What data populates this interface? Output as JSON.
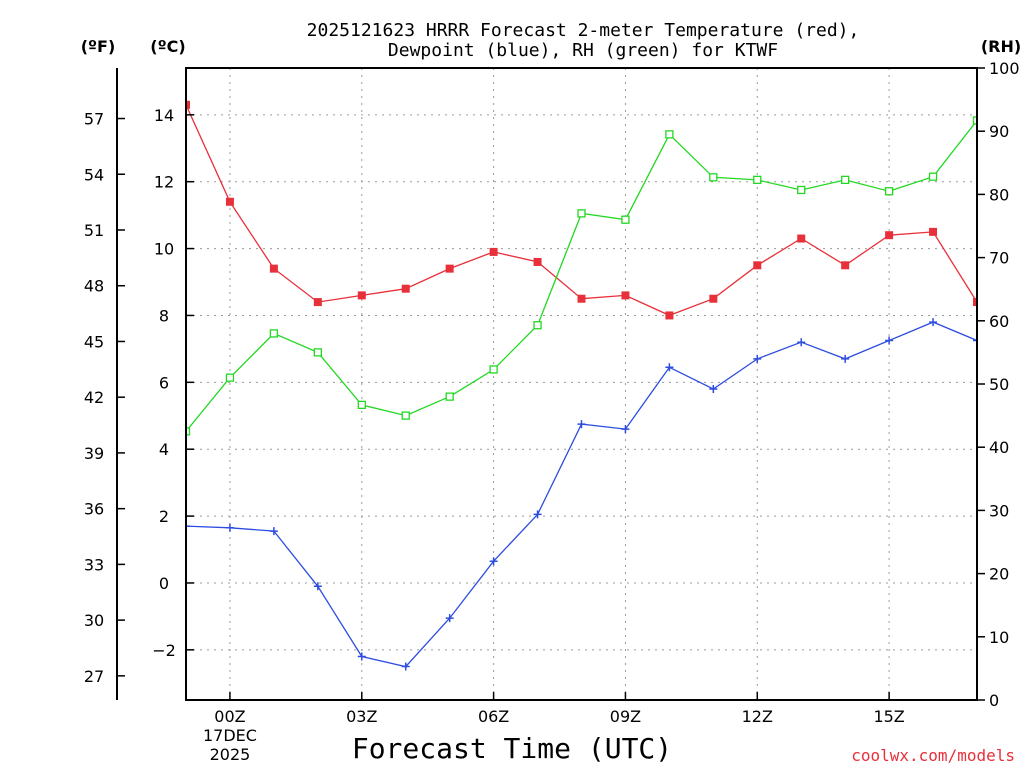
{
  "colors": {
    "temperature": "#e8303a",
    "dewpoint": "#2d4de0",
    "rh": "#22d822",
    "frame": "#000000",
    "credit": "#e8303a"
  },
  "chart_data": {
    "type": "line",
    "title": "2025121623 HRRR Forecast 2-meter Temperature (red),",
    "subtitle": "Dewpoint (blue), RH (green) for KTWF",
    "xlabel": "Forecast Time (UTC)",
    "credit": "coolwx.com/models",
    "units": {
      "fahrenheit": "(ºF)",
      "celsius": "(ºC)",
      "rh": "(RH)"
    },
    "x_ticks": [
      {
        "hour": 0,
        "label": "00Z",
        "sub1": "17DEC",
        "sub2": "2025"
      },
      {
        "hour": 3,
        "label": "03Z"
      },
      {
        "hour": 6,
        "label": "06Z"
      },
      {
        "hour": 9,
        "label": "09Z"
      },
      {
        "hour": 12,
        "label": "12Z"
      },
      {
        "hour": 15,
        "label": "15Z"
      }
    ],
    "xlim": [
      -1,
      17
    ],
    "celsius_axis": {
      "ylim": [
        -3.5,
        15.4
      ],
      "ticks": [
        -2,
        0,
        2,
        4,
        6,
        8,
        10,
        12,
        14
      ]
    },
    "fahrenheit_axis": {
      "ticks": [
        27,
        30,
        33,
        36,
        39,
        42,
        45,
        48,
        51,
        54,
        57
      ]
    },
    "rh_axis": {
      "ylim": [
        0,
        100
      ],
      "ticks": [
        0,
        10,
        20,
        30,
        40,
        50,
        60,
        70,
        80,
        90,
        100
      ]
    },
    "x": [
      -1,
      0,
      1,
      2,
      3,
      4,
      5,
      6,
      7,
      8,
      9,
      10,
      11,
      12,
      13,
      14,
      15,
      16,
      17
    ],
    "series": [
      {
        "name": "Temperature",
        "axis": "celsius",
        "marker": "filled-square",
        "color": "#e8303a",
        "values": [
          14.3,
          11.4,
          9.4,
          8.4,
          8.6,
          8.8,
          9.4,
          9.9,
          9.6,
          8.5,
          8.6,
          8.0,
          8.5,
          9.5,
          10.3,
          9.5,
          10.4,
          10.5,
          8.4
        ]
      },
      {
        "name": "Dewpoint",
        "axis": "celsius",
        "marker": "plus",
        "color": "#2d4de0",
        "values": [
          1.7,
          1.65,
          1.55,
          -0.1,
          -2.2,
          -2.5,
          -1.05,
          0.65,
          2.05,
          4.75,
          4.6,
          6.45,
          5.8,
          6.7,
          7.2,
          6.7,
          7.25,
          7.8,
          7.25
        ]
      },
      {
        "name": "RH",
        "axis": "rh",
        "marker": "open-square",
        "color": "#22d822",
        "values": [
          42.5,
          51,
          58,
          55,
          46.7,
          45,
          48,
          52.3,
          59.3,
          77,
          76,
          89.5,
          82.7,
          82.3,
          80.7,
          82.3,
          80.5,
          82.8,
          91.7
        ]
      }
    ]
  }
}
